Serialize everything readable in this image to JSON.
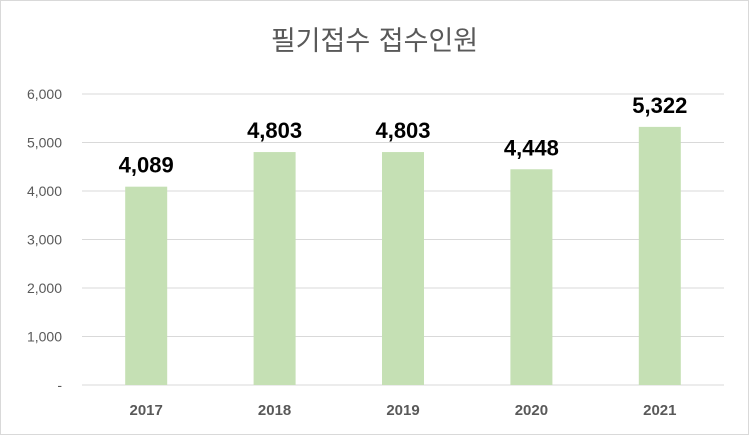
{
  "chart_data": {
    "type": "bar",
    "title": "필기접수 접수인원",
    "categories": [
      "2017",
      "2018",
      "2019",
      "2020",
      "2021"
    ],
    "values": [
      4089,
      4803,
      4803,
      4448,
      5322
    ],
    "data_labels": [
      "4,089",
      "4,803",
      "4,803",
      "4,448",
      "5,322"
    ],
    "ylim": [
      0,
      6000
    ],
    "yticks": [
      0,
      1000,
      2000,
      3000,
      4000,
      5000,
      6000
    ],
    "ytick_labels": [
      "-",
      "1,000",
      "2,000",
      "3,000",
      "4,000",
      "5,000",
      "6,000"
    ],
    "grid": true,
    "legend": "none",
    "colors": {
      "bar": "#c5e0b4",
      "grid": "#d9d9d9",
      "axis_text": "#595959",
      "label_text": "#000000"
    }
  }
}
